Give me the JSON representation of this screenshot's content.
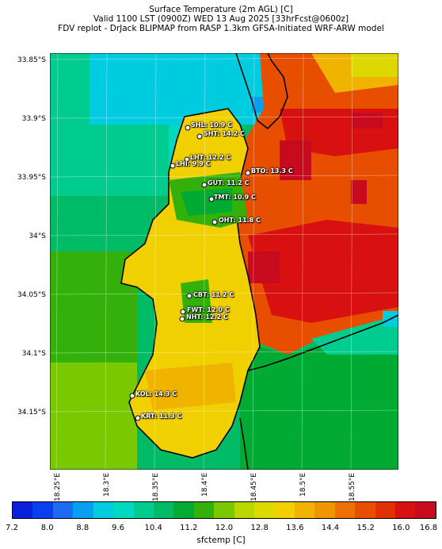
{
  "title": {
    "line1": "Surface Temperature (2m AGL) [C]",
    "line2": "Valid 1100 LST (0900Z) WED 13 Aug 2025 [33hrFcst@0600z]",
    "line3": "FDV replot - DrJack BLIPMAP from RASP 1.3km GFSA-Initiated WRF-ARW model"
  },
  "lat_ticks": [
    "33.85°S",
    "33.9°S",
    "33.95°S",
    "34°S",
    "34.05°S",
    "34.1°S",
    "34.15°S"
  ],
  "lon_ticks": [
    "18.25°E",
    "18.3°E",
    "18.35°E",
    "18.4°E",
    "18.45°E",
    "18.5°E",
    "18.55°E"
  ],
  "stations": [
    {
      "label": "SHL: 10.9 C"
    },
    {
      "label": "SHT: 14.2 C"
    },
    {
      "label": "LHT: 12.2 C"
    },
    {
      "label": "LHI: 9.9 C"
    },
    {
      "label": "BTO: 13.3 C"
    },
    {
      "label": "GUT: 11.2 C"
    },
    {
      "label": "TMT: 10.9 C"
    },
    {
      "label": "OHT: 11.8 C"
    },
    {
      "label": "CBT: 11.2 C"
    },
    {
      "label": "FWT: 12.0 C"
    },
    {
      "label": "NHT: 12.2 C"
    },
    {
      "label": "KOL: 14.3 C"
    },
    {
      "label": "KRT: 11.3 C"
    }
  ],
  "colorbar": {
    "label": "sfctemp [C]",
    "ticks": [
      "7.2",
      "8.0",
      "8.8",
      "9.6",
      "10.4",
      "11.2",
      "12.0",
      "12.8",
      "13.6",
      "14.4",
      "15.2",
      "16.0",
      "16.8"
    ],
    "colors": [
      "#0a1fd8",
      "#0a3ff0",
      "#1e6af2",
      "#06a0ef",
      "#00cce0",
      "#00d8c0",
      "#00cc90",
      "#00bb66",
      "#00aa33",
      "#33b00a",
      "#7ac800",
      "#b8d600",
      "#dcd800",
      "#f0d000",
      "#f0b400",
      "#ee9600",
      "#ee7000",
      "#e84e00",
      "#e03000",
      "#d81010",
      "#c80a1e"
    ]
  },
  "colors": {
    "ocean_west": "#00cc90",
    "ocean_north": "#00cce0",
    "land_hot": "#e03000",
    "coastline": "#000000"
  }
}
